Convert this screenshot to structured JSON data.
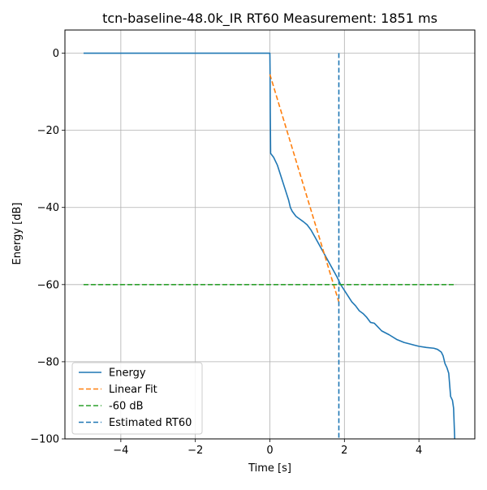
{
  "chart_data": {
    "type": "line",
    "title": "tcn-baseline-48.0k_IR RT60 Measurement: 1851 ms",
    "xlabel": "Time [s]",
    "ylabel": "Energy [dB]",
    "xlim": [
      -5.5,
      5.5
    ],
    "ylim": [
      -100,
      6
    ],
    "xticks": [
      -4,
      -2,
      0,
      2,
      4
    ],
    "yticks": [
      0,
      -20,
      -40,
      -60,
      -80,
      -100
    ],
    "xtick_labels": [
      "−4",
      "−2",
      "0",
      "2",
      "4"
    ],
    "ytick_labels": [
      "0",
      "−20",
      "−40",
      "−60",
      "−80",
      "−100"
    ],
    "grid": true,
    "legend_position": "bottom-left",
    "series": [
      {
        "name": "Energy",
        "style": "solid",
        "color": "#1f77b4",
        "points": [
          [
            -5,
            0
          ],
          [
            0,
            0
          ],
          [
            0.005,
            -5
          ],
          [
            0.01,
            -15
          ],
          [
            0.02,
            -26
          ],
          [
            0.1,
            -27
          ],
          [
            0.2,
            -29
          ],
          [
            0.3,
            -32
          ],
          [
            0.4,
            -35
          ],
          [
            0.5,
            -38
          ],
          [
            0.55,
            -40
          ],
          [
            0.6,
            -41
          ],
          [
            0.7,
            -42.3
          ],
          [
            0.8,
            -43
          ],
          [
            0.9,
            -43.7
          ],
          [
            1.0,
            -44.5
          ],
          [
            1.1,
            -45.8
          ],
          [
            1.2,
            -47.5
          ],
          [
            1.4,
            -51
          ],
          [
            1.6,
            -54.5
          ],
          [
            1.8,
            -58
          ],
          [
            1.9,
            -60
          ],
          [
            2.0,
            -61.5
          ],
          [
            2.1,
            -63
          ],
          [
            2.2,
            -64.5
          ],
          [
            2.3,
            -65.5
          ],
          [
            2.4,
            -66.8
          ],
          [
            2.5,
            -67.5
          ],
          [
            2.6,
            -68.5
          ],
          [
            2.7,
            -69.8
          ],
          [
            2.8,
            -70
          ],
          [
            2.9,
            -71
          ],
          [
            3.0,
            -72
          ],
          [
            3.2,
            -73
          ],
          [
            3.4,
            -74.2
          ],
          [
            3.6,
            -75
          ],
          [
            3.8,
            -75.5
          ],
          [
            4.0,
            -76
          ],
          [
            4.2,
            -76.3
          ],
          [
            4.4,
            -76.5
          ],
          [
            4.5,
            -76.8
          ],
          [
            4.6,
            -77.5
          ],
          [
            4.65,
            -78.5
          ],
          [
            4.7,
            -80.5
          ],
          [
            4.75,
            -81.5
          ],
          [
            4.8,
            -83
          ],
          [
            4.85,
            -89
          ],
          [
            4.9,
            -90
          ],
          [
            4.93,
            -92
          ],
          [
            4.96,
            -100
          ]
        ]
      },
      {
        "name": "Linear Fit",
        "style": "dashed",
        "color": "#ff7f0e",
        "points": [
          [
            0,
            -5.5
          ],
          [
            1.85,
            -64.5
          ]
        ]
      },
      {
        "name": "-60 dB",
        "style": "dashed",
        "color": "#2ca02c",
        "points": [
          [
            -5,
            -60
          ],
          [
            5,
            -60
          ]
        ]
      },
      {
        "name": "Estimated RT60",
        "style": "dashed",
        "color": "#1f77b4",
        "points": [
          [
            1.851,
            0
          ],
          [
            1.851,
            -100
          ]
        ]
      }
    ]
  }
}
